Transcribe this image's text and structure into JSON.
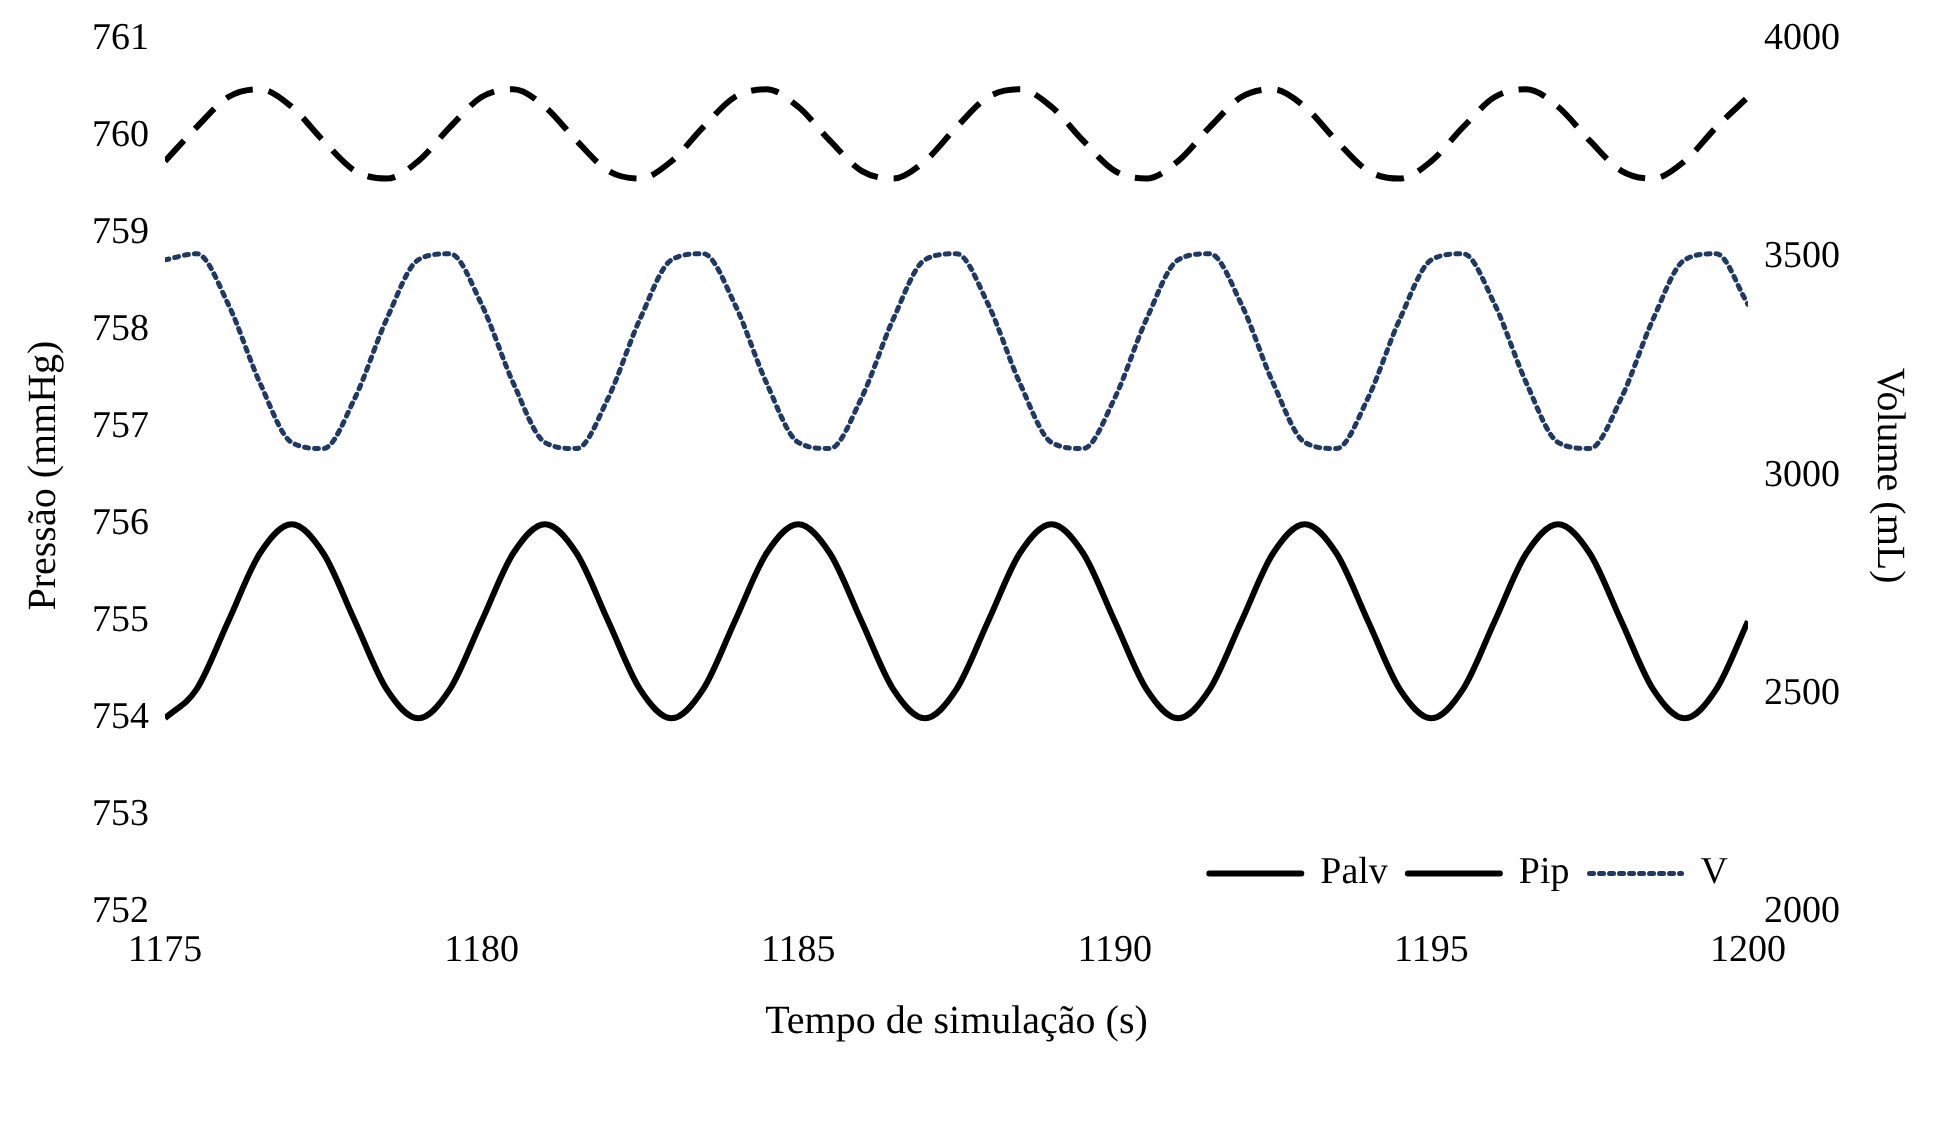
{
  "chart_data": {
    "type": "line",
    "xlabel": "Tempo de simulação (s)",
    "ylabel": "Pressão (mmHg)",
    "y2label": "Volume (mL)",
    "x": [
      1175,
      1175.5,
      1176,
      1176.5,
      1177,
      1177.5,
      1178,
      1178.5,
      1179,
      1179.5,
      1180,
      1180.5,
      1181,
      1181.5,
      1182,
      1182.5,
      1183,
      1183.5,
      1184,
      1184.5,
      1185,
      1185.5,
      1186,
      1186.5,
      1187,
      1187.5,
      1188,
      1188.5,
      1189,
      1189.5,
      1190,
      1190.5,
      1191,
      1191.5,
      1192,
      1192.5,
      1193,
      1193.5,
      1194,
      1194.5,
      1195,
      1195.5,
      1196,
      1196.5,
      1197,
      1197.5,
      1198,
      1198.5,
      1199,
      1199.5,
      1200
    ],
    "series": [
      {
        "name": "Palv",
        "color": "#000000",
        "line_style": "dashed",
        "axis": "y",
        "values": [
          759.74,
          760.09,
          760.4,
          760.48,
          760.3,
          759.95,
          759.64,
          759.56,
          759.74,
          760.09,
          760.4,
          760.48,
          760.3,
          759.95,
          759.64,
          759.56,
          759.74,
          760.09,
          760.4,
          760.48,
          760.3,
          759.95,
          759.64,
          759.56,
          759.74,
          760.09,
          760.4,
          760.48,
          760.3,
          759.95,
          759.64,
          759.56,
          759.74,
          760.09,
          760.4,
          760.48,
          760.3,
          759.95,
          759.64,
          759.56,
          759.74,
          760.09,
          760.4,
          760.48,
          760.3,
          759.95,
          759.64,
          759.56,
          759.74,
          760.09,
          760.4
        ]
      },
      {
        "name": "Pip",
        "color": "#000000",
        "line_style": "solid",
        "axis": "y",
        "values": [
          754,
          754.3,
          755,
          755.7,
          756,
          755.7,
          755,
          754.3,
          754,
          754.3,
          755,
          755.7,
          756,
          755.7,
          755,
          754.3,
          754,
          754.3,
          755,
          755.7,
          756,
          755.7,
          755,
          754.3,
          754,
          754.3,
          755,
          755.7,
          756,
          755.7,
          755,
          754.3,
          754,
          754.3,
          755,
          755.7,
          756,
          755.7,
          755,
          754.3,
          754,
          754.3,
          755,
          755.7,
          756,
          755.7,
          755,
          754.3,
          754,
          754.3,
          755
        ]
      },
      {
        "name": "V",
        "color": "#1f3864",
        "line_style": "dotted",
        "axis": "y2",
        "values": [
          3494,
          3508,
          3392,
          3212,
          3076,
          3062,
          3178,
          3358,
          3494,
          3508,
          3392,
          3212,
          3076,
          3062,
          3178,
          3358,
          3494,
          3508,
          3392,
          3212,
          3076,
          3062,
          3178,
          3358,
          3494,
          3508,
          3392,
          3212,
          3076,
          3062,
          3178,
          3358,
          3494,
          3508,
          3392,
          3212,
          3076,
          3062,
          3178,
          3358,
          3494,
          3508,
          3392,
          3212,
          3076,
          3062,
          3178,
          3358,
          3494,
          3508,
          3392
        ]
      }
    ],
    "xlim": [
      1175,
      1200
    ],
    "xticks": [
      1175,
      1180,
      1185,
      1190,
      1195,
      1200
    ],
    "ylim": [
      752,
      761
    ],
    "yticks": [
      752,
      753,
      754,
      755,
      756,
      757,
      758,
      759,
      760,
      761
    ],
    "y2lim": [
      2000,
      4000
    ],
    "y2ticks": [
      2000,
      2500,
      3000,
      3500,
      4000
    ],
    "grid": false,
    "legend": "bottom right",
    "marker": "none"
  }
}
